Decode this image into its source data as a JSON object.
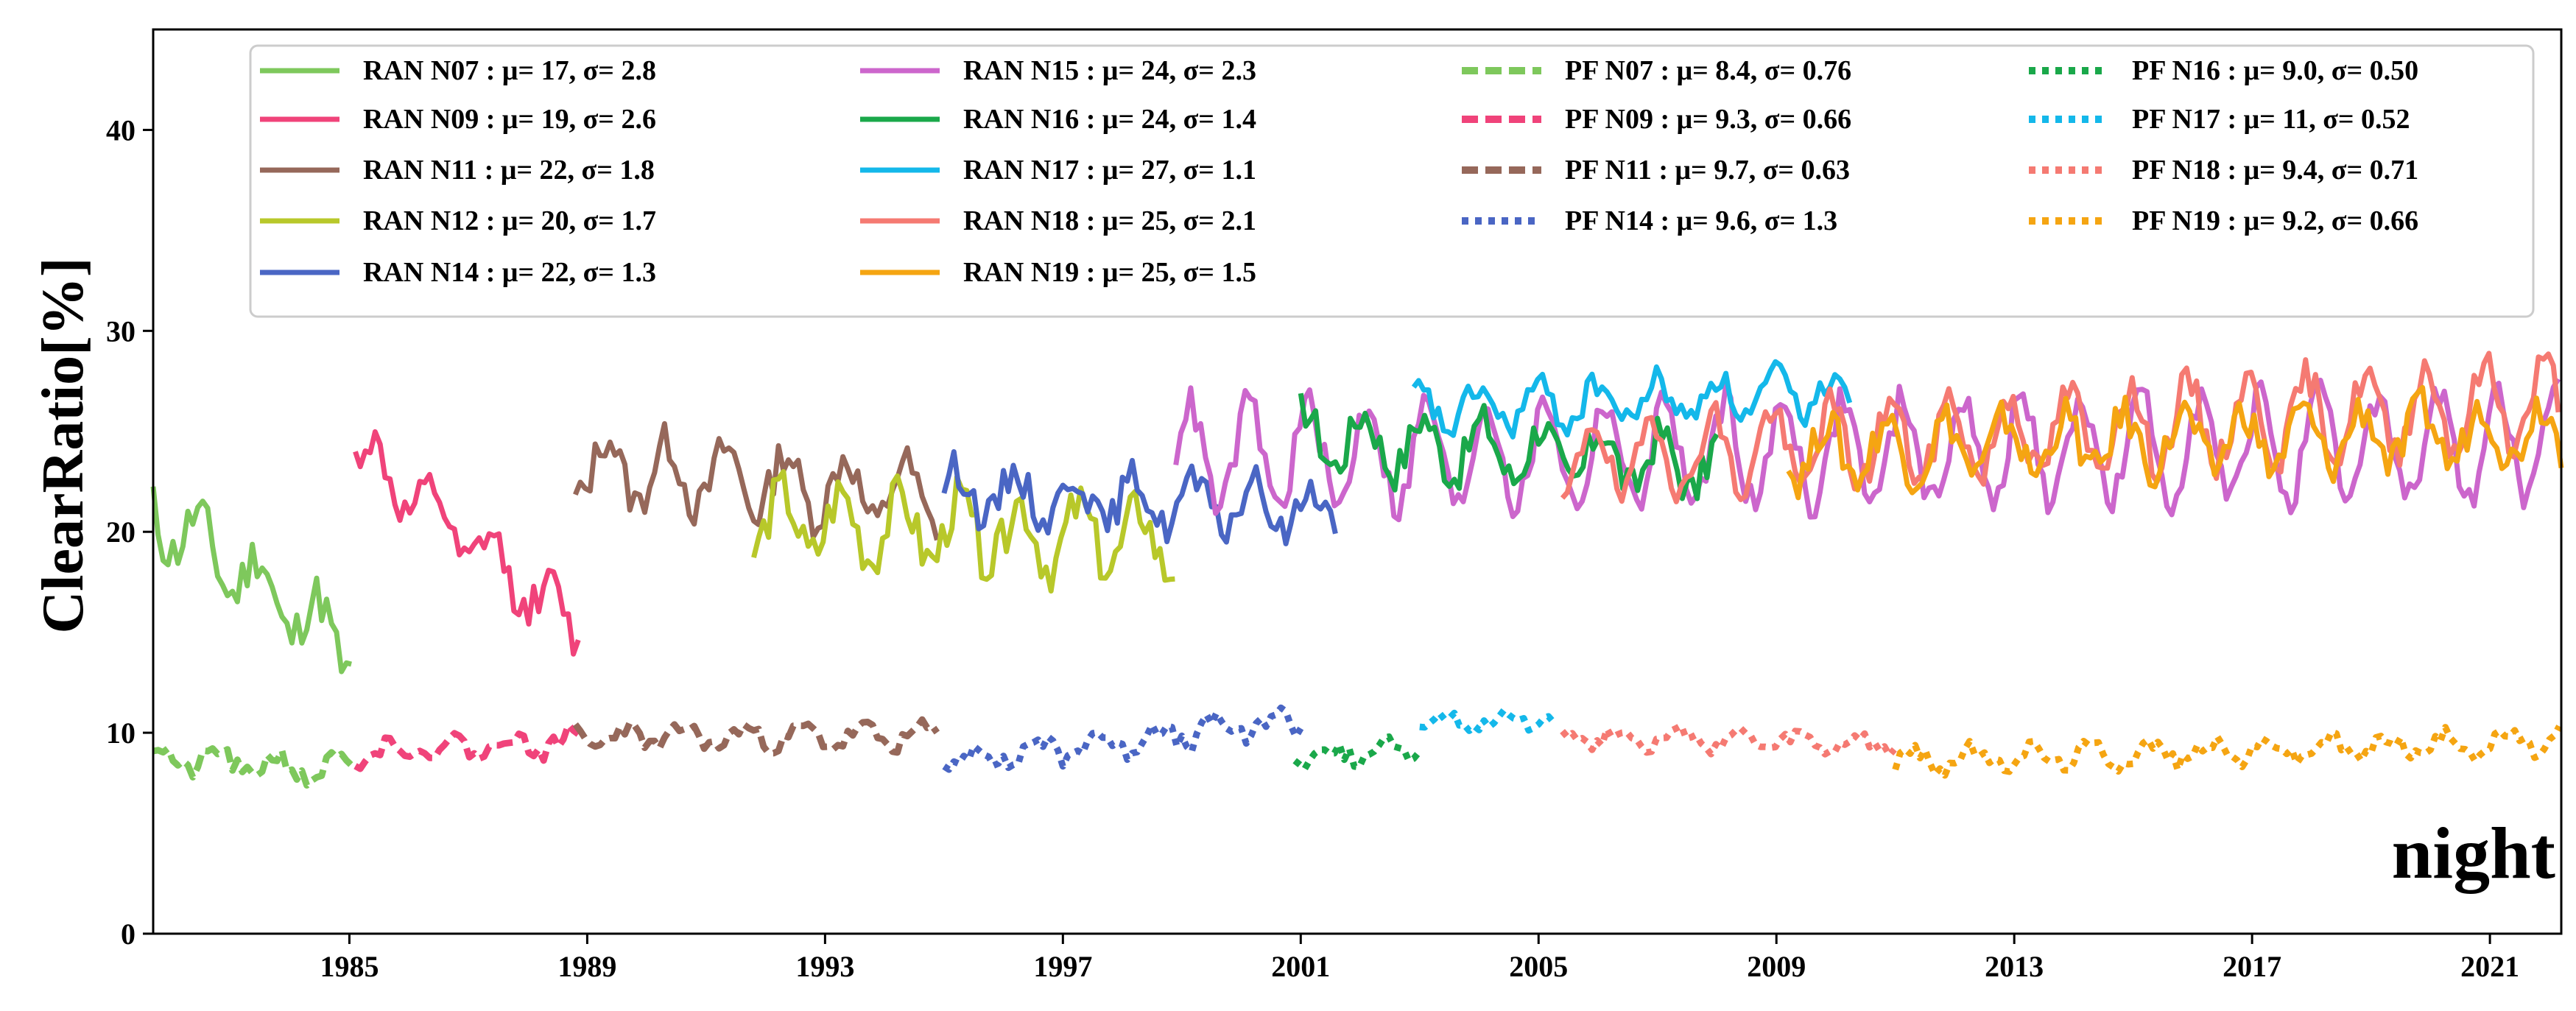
{
  "chart_data": {
    "type": "line",
    "title": "",
    "xlabel": "",
    "ylabel": "ClearRatio[%]",
    "annotation": "night",
    "xlim": [
      1981.7,
      2022.2
    ],
    "ylim": [
      0,
      45
    ],
    "x_ticks": [
      1985,
      1989,
      1993,
      1997,
      2001,
      2005,
      2009,
      2013,
      2017,
      2021
    ],
    "x_tick_labels": [
      "1985",
      "1989",
      "1993",
      "1997",
      "2001",
      "2005",
      "2009",
      "2013",
      "2017",
      "2021"
    ],
    "y_ticks": [
      0,
      10,
      20,
      30,
      40
    ],
    "y_tick_labels": [
      "0",
      "10",
      "20",
      "30",
      "40"
    ],
    "legend_position": "top",
    "series": [
      {
        "name": "RAN N07",
        "label": "RAN N07 : μ=   17, σ=  2.8",
        "color": "#7ec85c",
        "style": "solid",
        "start": 1981.7,
        "end": 1985.1,
        "mean": 17.5,
        "amp": 1.5,
        "noise": 1.2,
        "trend": -7,
        "seed": 11
      },
      {
        "name": "RAN N09",
        "label": "RAN N09 : μ=   19, σ=  2.6",
        "color": "#f0437a",
        "style": "solid",
        "start": 1985.1,
        "end": 1988.9,
        "mean": 19.5,
        "amp": 1.2,
        "noise": 0.9,
        "trend": -9,
        "seed": 12
      },
      {
        "name": "RAN N11",
        "label": "RAN N11 : μ=   22, σ=  1.8",
        "color": "#96685a",
        "style": "solid",
        "start": 1988.8,
        "end": 1994.9,
        "mean": 22.5,
        "amp": 1.6,
        "noise": 1.0,
        "trend": -1.5,
        "seed": 13
      },
      {
        "name": "RAN N12",
        "label": "RAN N12 : μ=   20, σ=  1.7",
        "color": "#b8c82a",
        "style": "solid",
        "start": 1991.8,
        "end": 1998.9,
        "mean": 20,
        "amp": 1.6,
        "noise": 1.2,
        "trend": -1,
        "seed": 14
      },
      {
        "name": "RAN N14",
        "label": "RAN N14 : μ=   22, σ=  1.3",
        "color": "#4a66c4",
        "style": "solid",
        "start": 1995.0,
        "end": 2001.6,
        "mean": 21.5,
        "amp": 1.2,
        "noise": 0.9,
        "trend": -1,
        "seed": 15
      },
      {
        "name": "RAN N15",
        "label": "RAN N15 : μ=   24, σ=  2.3",
        "color": "#cc66cc",
        "style": "solid",
        "start": 1998.9,
        "end": 2022.2,
        "mean": 24,
        "amp": 2.6,
        "noise": 0.9,
        "trend": 0.5,
        "seed": 16
      },
      {
        "name": "RAN N16",
        "label": "RAN N16 : μ=   24, σ=  1.4",
        "color": "#1aa84a",
        "style": "solid",
        "start": 2001.0,
        "end": 2008.0,
        "mean": 24,
        "amp": 1.4,
        "noise": 1.0,
        "trend": -1.5,
        "seed": 17
      },
      {
        "name": "RAN N17",
        "label": "RAN N17 : μ=   27, σ=  1.1",
        "color": "#14b8ea",
        "style": "solid",
        "start": 2002.9,
        "end": 2010.3,
        "mean": 26.5,
        "amp": 1.0,
        "noise": 0.7,
        "trend": 1,
        "seed": 18
      },
      {
        "name": "RAN N18",
        "label": "RAN N18 : μ=   25, σ=  2.1",
        "color": "#f57a72",
        "style": "solid",
        "start": 2005.4,
        "end": 2022.2,
        "mean": 25,
        "amp": 2.0,
        "noise": 0.9,
        "trend": 3,
        "seed": 19
      },
      {
        "name": "RAN N19",
        "label": "RAN N19 : μ=   25, σ=  1.5",
        "color": "#f5a512",
        "style": "solid",
        "start": 2009.2,
        "end": 2022.2,
        "mean": 24.5,
        "amp": 1.4,
        "noise": 1.0,
        "trend": 1,
        "seed": 20
      },
      {
        "name": "PF N07",
        "label": "PF N07 : μ=  8.4, σ= 0.76",
        "color": "#7ec85c",
        "style": "dashed",
        "start": 1981.7,
        "end": 1985.1,
        "mean": 8.4,
        "amp": 0.6,
        "noise": 0.5,
        "trend": -0.8,
        "seed": 21
      },
      {
        "name": "PF N09",
        "label": "PF N09 : μ=  9.3, σ= 0.66",
        "color": "#f0437a",
        "style": "dashed",
        "start": 1985.1,
        "end": 1988.9,
        "mean": 9.3,
        "amp": 0.5,
        "noise": 0.4,
        "trend": 0.5,
        "seed": 22
      },
      {
        "name": "PF N11",
        "label": "PF N11 : μ=  9.7, σ= 0.63",
        "color": "#96685a",
        "style": "dashed",
        "start": 1988.8,
        "end": 1994.9,
        "mean": 9.8,
        "amp": 0.5,
        "noise": 0.4,
        "trend": 0,
        "seed": 23
      },
      {
        "name": "PF N14",
        "label": "PF N14 : μ=  9.6, σ=  1.3",
        "color": "#4a66c4",
        "style": "dotted",
        "start": 1995.0,
        "end": 2001.0,
        "mean": 9.6,
        "amp": 0.6,
        "noise": 0.5,
        "trend": 2,
        "seed": 24
      },
      {
        "name": "PF N16",
        "label": "PF N16 : μ=  9.0, σ= 0.50",
        "color": "#1aa84a",
        "style": "dotted",
        "start": 2000.9,
        "end": 2003.0,
        "mean": 9.0,
        "amp": 0.4,
        "noise": 0.4,
        "trend": 0.3,
        "seed": 25
      },
      {
        "name": "PF N17",
        "label": "PF N17 : μ=   11, σ= 0.52",
        "color": "#14b8ea",
        "style": "dotted",
        "start": 2003.0,
        "end": 2005.3,
        "mean": 10.6,
        "amp": 0.3,
        "noise": 0.3,
        "trend": 0,
        "seed": 26
      },
      {
        "name": "PF N18",
        "label": "PF N18 : μ=  9.4, σ= 0.71",
        "color": "#f57a72",
        "style": "dotted",
        "start": 2005.4,
        "end": 2011.0,
        "mean": 9.6,
        "amp": 0.4,
        "noise": 0.35,
        "trend": -0.5,
        "seed": 27
      },
      {
        "name": "PF N19",
        "label": "PF N19 : μ=  9.2, σ= 0.66",
        "color": "#f5a512",
        "style": "dotted",
        "start": 2011.0,
        "end": 2022.2,
        "mean": 9.1,
        "amp": 0.5,
        "noise": 0.4,
        "trend": 1,
        "seed": 28
      }
    ]
  }
}
